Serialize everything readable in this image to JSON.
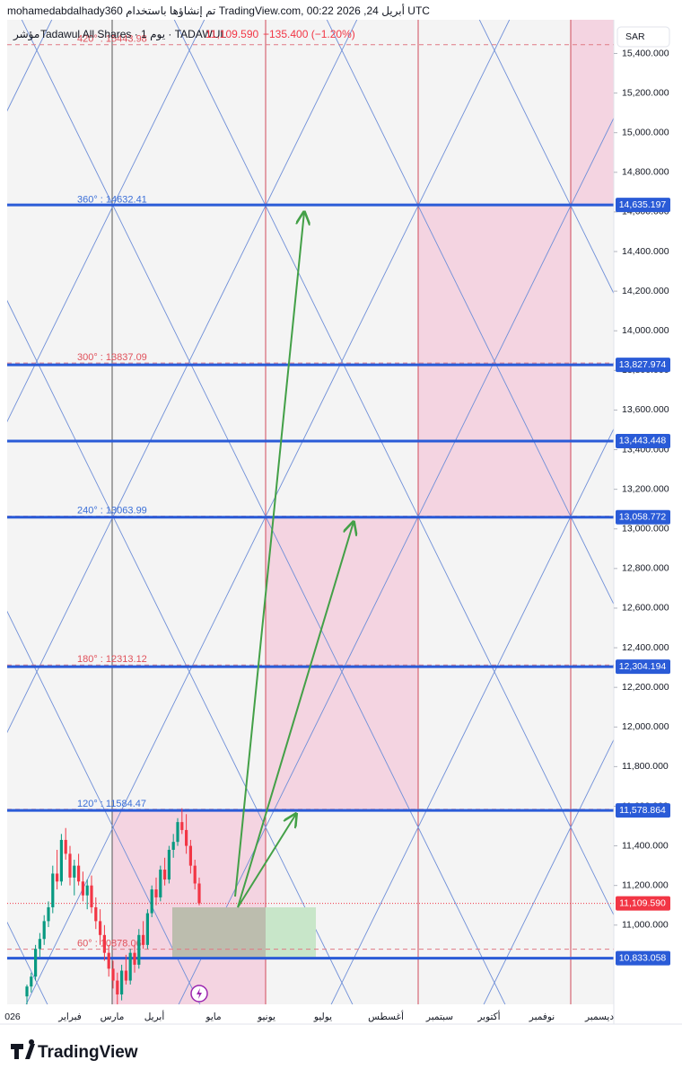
{
  "chart_data": {
    "type": "candlestick",
    "header": "mohamedabdalhady360 تم إنشاؤها باستخدام TradingView.com, 00:22 2026 ,24 أبريل UTC",
    "symbol_type": "مؤشر",
    "symbol": "Tadawul All Shares · 1 يوم · TADAWUL",
    "change": "−135.400 (−1.20%)",
    "currency": "SAR",
    "brand": "TradingView",
    "categories": [
      "026",
      "فبراير",
      "مارس",
      "أبريل",
      "مايو",
      "يونيو",
      "يوليو",
      "أغسطس",
      "سبتمبر",
      "أكتوبر",
      "نوفمبر",
      "ديسمبر"
    ],
    "open": [
      10640,
      10690,
      10740,
      10880,
      10930,
      11020,
      11090,
      11260,
      11220,
      11430,
      11360,
      11240,
      11300,
      11220,
      11150,
      11200,
      11090,
      11020,
      10950,
      10860,
      10780,
      10720,
      10650,
      10770,
      10720,
      10860,
      10800,
      10950,
      10900,
      11060,
      11180,
      11140,
      11280,
      11230,
      11380,
      11420,
      11520,
      11480,
      11400,
      11300,
      11210
    ],
    "high": [
      10700,
      10760,
      10900,
      10960,
      11050,
      11120,
      11300,
      11380,
      11460,
      11490,
      11400,
      11330,
      11360,
      11270,
      11230,
      11250,
      11140,
      11080,
      11000,
      10900,
      10820,
      10760,
      10800,
      10850,
      10880,
      10900,
      10980,
      11020,
      11080,
      11200,
      11240,
      11300,
      11340,
      11400,
      11460,
      11540,
      11590,
      11560,
      11430,
      11330,
      11240
    ],
    "low": [
      10600,
      10660,
      10720,
      10840,
      10900,
      10990,
      11060,
      11180,
      11200,
      11330,
      11200,
      11150,
      11200,
      11120,
      11080,
      11060,
      10980,
      10900,
      10820,
      10740,
      10680,
      10600,
      10620,
      10700,
      10700,
      10760,
      10780,
      10880,
      10880,
      11040,
      11100,
      11120,
      11200,
      11210,
      11340,
      11400,
      11460,
      11360,
      11260,
      11180,
      11100
    ],
    "close": [
      10690,
      10740,
      10880,
      10930,
      11020,
      11090,
      11260,
      11220,
      11430,
      11360,
      11240,
      11300,
      11220,
      11150,
      11200,
      11090,
      11020,
      10950,
      10860,
      10780,
      10720,
      10650,
      10770,
      10720,
      10860,
      10800,
      10950,
      10900,
      11060,
      11180,
      11140,
      11280,
      11230,
      11380,
      11420,
      11520,
      11480,
      11400,
      11300,
      11210,
      11110
    ],
    "up_color": "#089981",
    "down_color": "#f23645",
    "ylim": [
      10600,
      15570
    ],
    "yticks": [
      {
        "value": 11000,
        "label": "11,000.000"
      },
      {
        "value": 11200,
        "label": "11,200.000"
      },
      {
        "value": 11400,
        "label": "11,400.000"
      },
      {
        "value": 11600,
        "label": "11,600.000"
      },
      {
        "value": 11800,
        "label": "11,800.000"
      },
      {
        "value": 12000,
        "label": "12,000.000"
      },
      {
        "value": 12200,
        "label": "12,200.000"
      },
      {
        "value": 12400,
        "label": "12,400.000"
      },
      {
        "value": 12600,
        "label": "12,600.000"
      },
      {
        "value": 12800,
        "label": "12,800.000"
      },
      {
        "value": 13000,
        "label": "13,000.000"
      },
      {
        "value": 13200,
        "label": "13,200.000"
      },
      {
        "value": 13400,
        "label": "13,400.000"
      },
      {
        "value": 13600,
        "label": "13,600.000"
      },
      {
        "value": 13800,
        "label": "13,800.000"
      },
      {
        "value": 14000,
        "label": "14,000.000"
      },
      {
        "value": 14200,
        "label": "14,200.000"
      },
      {
        "value": 14400,
        "label": "14,400.000"
      },
      {
        "value": 14600,
        "label": "14,600.000"
      },
      {
        "value": 14800,
        "label": "14,800.000"
      },
      {
        "value": 15000,
        "label": "15,000.000"
      },
      {
        "value": 15200,
        "label": "15,200.000"
      },
      {
        "value": 15400,
        "label": "15,400.000"
      }
    ],
    "levels": [
      {
        "value": 14635.197,
        "label": "14,635.197"
      },
      {
        "value": 13827.974,
        "label": "13,827.974"
      },
      {
        "value": 13443.448,
        "label": "13,443.448"
      },
      {
        "value": 13058.772,
        "label": "13,058.772"
      },
      {
        "value": 12304.194,
        "label": "12,304.194"
      },
      {
        "value": 11578.864,
        "label": "11,578.864"
      },
      {
        "value": 10833.058,
        "label": "10,833.058"
      }
    ],
    "level_color": "#2a5bd7",
    "last_price": {
      "value": 11109.59,
      "label": "11,109.590"
    },
    "gann_levels": [
      {
        "value": 15443.98,
        "label": "420° : 15443.98",
        "color": "#e0505a"
      },
      {
        "value": 14632.41,
        "label": "360° : 14632.41",
        "color": "#3b6fd8"
      },
      {
        "value": 13837.09,
        "label": "300° : 13837.09",
        "color": "#e0505a"
      },
      {
        "value": 13063.99,
        "label": "240° : 13063.99",
        "color": "#3b6fd8"
      },
      {
        "value": 12313.12,
        "label": "180° : 12313.12",
        "color": "#e0505a"
      },
      {
        "value": 11584.47,
        "label": "120° : 11584.47",
        "color": "#3b6fd8"
      },
      {
        "value": 10878.06,
        "label": "60° : 10878.06",
        "color": "#e0505a"
      }
    ]
  }
}
